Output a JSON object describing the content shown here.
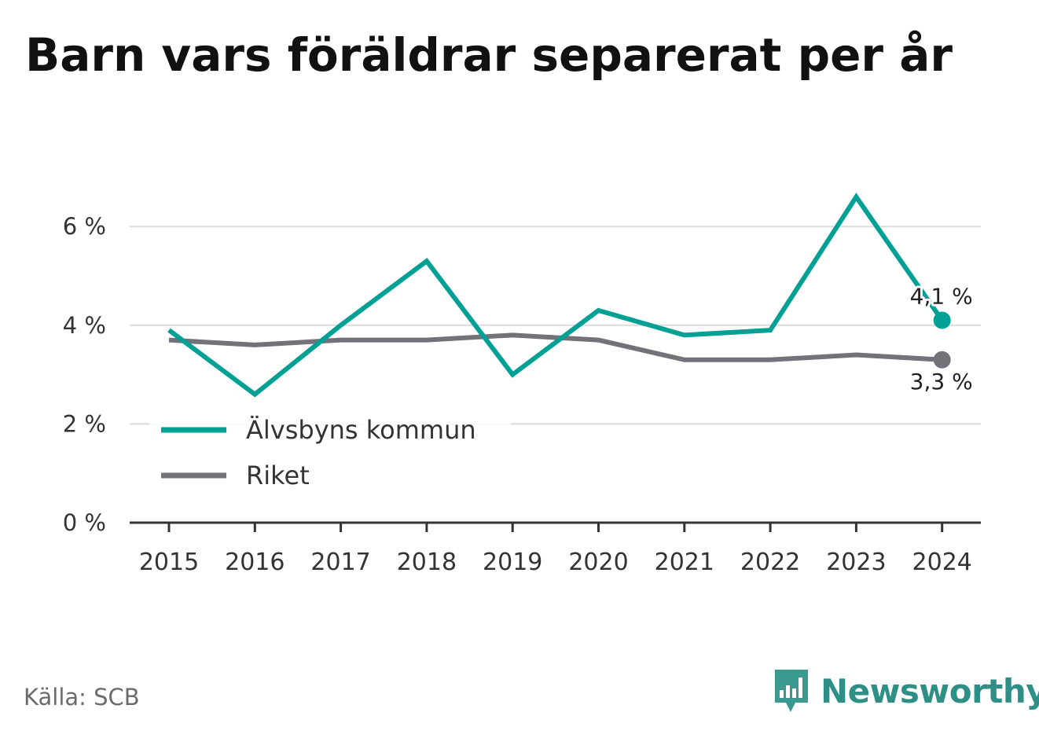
{
  "title": "Barn vars föräldrar separerat per år",
  "source": "Källa: SCB",
  "brand": {
    "name": "Newsworthy",
    "icon": "newsworthy-logo-icon",
    "color": "#3a9a90"
  },
  "chart_data": {
    "type": "line",
    "x": [
      "2015",
      "2016",
      "2017",
      "2018",
      "2019",
      "2020",
      "2021",
      "2022",
      "2023",
      "2024"
    ],
    "ylim": [
      0,
      7
    ],
    "yticks": [
      0,
      2,
      4,
      6
    ],
    "ytick_labels": [
      "0 %",
      "2 %",
      "4 %",
      "6 %"
    ],
    "grid": true,
    "legend_position": "bottom-left",
    "series": [
      {
        "name": "Älvsbyns kommun",
        "color": "#00a095",
        "values": [
          3.9,
          2.6,
          4.0,
          5.3,
          3.0,
          4.3,
          3.8,
          3.9,
          6.6,
          4.1
        ],
        "end_label": "4,1 %"
      },
      {
        "name": "Riket",
        "color": "#737278",
        "values": [
          3.7,
          3.6,
          3.7,
          3.7,
          3.8,
          3.7,
          3.3,
          3.3,
          3.4,
          3.3
        ],
        "end_label": "3,3 %"
      }
    ]
  }
}
